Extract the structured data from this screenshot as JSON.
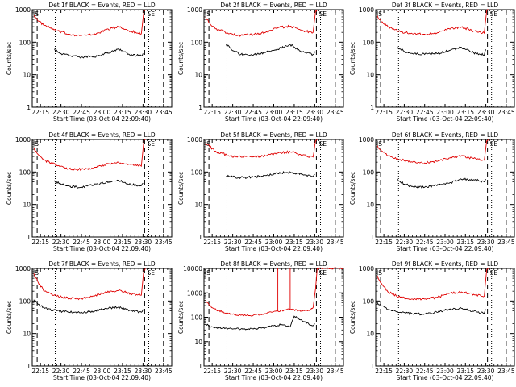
{
  "chart_data": [
    {
      "type": "line",
      "title": "Det 1f BLACK = Events, RED = LLD",
      "corner_left": "IS",
      "corner_right": "SE",
      "xlabel": "Start Time (03-Oct-04 22:09:40)",
      "ylabel": "Counts/sec",
      "ylim": [
        1,
        1000
      ],
      "ylog": true,
      "xlim": [
        22.15,
        23.85
      ],
      "xticks": [
        "22:15",
        "22:30",
        "22:45",
        "23:00",
        "23:15",
        "23:30",
        "23:45"
      ],
      "yticks": [
        "1",
        "10",
        "100",
        "1000"
      ],
      "markers": {
        "dashed": [
          22.21,
          23.52,
          23.75
        ],
        "dotted": [
          22.43,
          23.57
        ]
      },
      "series": [
        {
          "color": "#e00000",
          "x": [
            22.17,
            22.22,
            22.3,
            22.45,
            22.6,
            22.75,
            22.9,
            23.05,
            23.2,
            23.35,
            23.48,
            23.51,
            23.53
          ],
          "y": [
            700,
            450,
            330,
            220,
            175,
            160,
            170,
            240,
            300,
            220,
            180,
            900,
            1000
          ]
        },
        {
          "color": "#000000",
          "x": [
            22.42,
            22.5,
            22.6,
            22.75,
            22.9,
            23.05,
            23.2,
            23.35,
            23.48,
            23.5
          ],
          "y": [
            62,
            45,
            38,
            35,
            36,
            45,
            62,
            40,
            38,
            45
          ]
        }
      ]
    },
    {
      "type": "line",
      "title": "Det 2f BLACK = Events, RED = LLD",
      "corner_left": "IS",
      "corner_right": "SE",
      "xlabel": "Start Time (03-Oct-04 22:09:40)",
      "ylabel": "Counts/sec",
      "ylim": [
        1,
        1000
      ],
      "ylog": true,
      "xlim": [
        22.15,
        23.85
      ],
      "xticks": [
        "22:15",
        "22:30",
        "22:45",
        "23:00",
        "23:15",
        "23:30",
        "23:45"
      ],
      "yticks": [
        "1",
        "10",
        "100",
        "1000"
      ],
      "markers": {
        "dashed": [
          22.21,
          23.52,
          23.75
        ],
        "dotted": [
          22.43,
          23.57
        ]
      },
      "series": [
        {
          "color": "#e00000",
          "x": [
            22.17,
            22.22,
            22.3,
            22.45,
            22.6,
            22.75,
            22.9,
            23.05,
            23.2,
            23.35,
            23.48,
            23.51,
            23.53
          ],
          "y": [
            600,
            380,
            260,
            180,
            160,
            170,
            200,
            280,
            310,
            230,
            200,
            900,
            1000
          ]
        },
        {
          "color": "#000000",
          "x": [
            22.42,
            22.5,
            22.6,
            22.75,
            22.9,
            23.05,
            23.2,
            23.35,
            23.48,
            23.5
          ],
          "y": [
            85,
            55,
            42,
            40,
            48,
            60,
            85,
            50,
            42,
            52
          ]
        }
      ]
    },
    {
      "type": "line",
      "title": "Det 3f BLACK = Events, RED = LLD",
      "corner_left": "IS",
      "corner_right": "SE",
      "xlabel": "Start Time (03-Oct-04 22:09:40)",
      "ylabel": "Counts/sec",
      "ylim": [
        1,
        1000
      ],
      "ylog": true,
      "xlim": [
        22.15,
        23.85
      ],
      "xticks": [
        "22:15",
        "22:30",
        "22:45",
        "23:00",
        "23:15",
        "23:30",
        "23:45"
      ],
      "yticks": [
        "1",
        "10",
        "100",
        "1000"
      ],
      "markers": {
        "dashed": [
          22.21,
          23.52,
          23.75
        ],
        "dotted": [
          22.43,
          23.57
        ]
      },
      "series": [
        {
          "color": "#e00000",
          "x": [
            22.17,
            22.22,
            22.3,
            22.45,
            22.6,
            22.75,
            22.9,
            23.05,
            23.2,
            23.35,
            23.48,
            23.51,
            23.53
          ],
          "y": [
            650,
            420,
            300,
            210,
            180,
            175,
            190,
            260,
            290,
            220,
            190,
            900,
            1000
          ]
        },
        {
          "color": "#000000",
          "x": [
            22.42,
            22.5,
            22.6,
            22.75,
            22.9,
            23.05,
            23.2,
            23.35,
            23.48,
            23.5
          ],
          "y": [
            70,
            52,
            45,
            42,
            45,
            55,
            70,
            48,
            40,
            60
          ]
        }
      ]
    },
    {
      "type": "line",
      "title": "Det 4f BLACK = Events, RED = LLD",
      "corner_left": "IS",
      "corner_right": "SE",
      "xlabel": "Start Time (03-Oct-04 22:09:40)",
      "ylabel": "Counts/sec",
      "ylim": [
        1,
        1000
      ],
      "ylog": true,
      "xlim": [
        22.15,
        23.85
      ],
      "xticks": [
        "22:15",
        "22:30",
        "22:45",
        "23:00",
        "23:15",
        "23:30",
        "23:45"
      ],
      "yticks": [
        "1",
        "10",
        "100",
        "1000"
      ],
      "markers": {
        "dashed": [
          22.21,
          23.52,
          23.75
        ],
        "dotted": [
          22.43,
          23.57
        ]
      },
      "series": [
        {
          "color": "#e00000",
          "x": [
            22.17,
            22.22,
            22.3,
            22.45,
            22.6,
            22.75,
            22.9,
            23.05,
            23.2,
            23.35,
            23.48,
            23.51,
            23.53
          ],
          "y": [
            550,
            350,
            230,
            160,
            125,
            120,
            135,
            170,
            200,
            170,
            150,
            900,
            1000
          ]
        },
        {
          "color": "#000000",
          "x": [
            22.42,
            22.5,
            22.6,
            22.75,
            22.9,
            23.05,
            23.2,
            23.35,
            23.48,
            23.5
          ],
          "y": [
            55,
            42,
            36,
            34,
            40,
            48,
            55,
            42,
            38,
            45
          ]
        }
      ]
    },
    {
      "type": "line",
      "title": "Det 5f BLACK = Events, RED = LLD",
      "corner_left": "IS",
      "corner_right": "SE",
      "xlabel": "Start Time (03-Oct-04 22:09:40)",
      "ylabel": "Counts/sec",
      "ylim": [
        1,
        1000
      ],
      "ylog": true,
      "xlim": [
        22.15,
        23.85
      ],
      "xticks": [
        "22:15",
        "22:30",
        "22:45",
        "23:00",
        "23:15",
        "23:30",
        "23:45"
      ],
      "yticks": [
        "1",
        "10",
        "100",
        "1000"
      ],
      "markers": {
        "dashed": [
          22.21,
          23.52,
          23.75
        ],
        "dotted": [
          22.43,
          23.57
        ]
      },
      "series": [
        {
          "color": "#e00000",
          "x": [
            22.17,
            22.22,
            22.3,
            22.45,
            22.6,
            22.75,
            22.9,
            23.05,
            23.2,
            23.35,
            23.48,
            23.51,
            23.53
          ],
          "y": [
            800,
            600,
            420,
            320,
            290,
            290,
            310,
            380,
            420,
            330,
            290,
            900,
            1000
          ]
        },
        {
          "color": "#000000",
          "x": [
            22.42,
            22.5,
            22.6,
            22.75,
            22.9,
            23.05,
            23.2,
            23.35,
            23.48,
            23.5
          ],
          "y": [
            75,
            70,
            68,
            70,
            78,
            90,
            100,
            85,
            72,
            85
          ]
        }
      ]
    },
    {
      "type": "line",
      "title": "Det 6f BLACK = Events, RED = LLD",
      "corner_left": "IS",
      "corner_right": "SE",
      "xlabel": "Start Time (03-Oct-04 22:09:40)",
      "ylabel": "Counts/sec",
      "ylim": [
        1,
        1000
      ],
      "ylog": true,
      "xlim": [
        22.15,
        23.85
      ],
      "xticks": [
        "22:15",
        "22:30",
        "22:45",
        "23:00",
        "23:15",
        "23:30",
        "23:45"
      ],
      "yticks": [
        "1",
        "10",
        "100",
        "1000"
      ],
      "markers": {
        "dashed": [
          22.21,
          23.52,
          23.75
        ],
        "dotted": [
          22.43,
          23.57
        ]
      },
      "series": [
        {
          "color": "#e00000",
          "x": [
            22.17,
            22.22,
            22.3,
            22.45,
            22.6,
            22.75,
            22.9,
            23.05,
            23.2,
            23.35,
            23.48,
            23.51,
            23.53
          ],
          "y": [
            650,
            450,
            320,
            240,
            200,
            190,
            210,
            270,
            320,
            260,
            230,
            900,
            1000
          ]
        },
        {
          "color": "#000000",
          "x": [
            22.42,
            22.5,
            22.6,
            22.75,
            22.9,
            23.05,
            23.2,
            23.35,
            23.48,
            23.5
          ],
          "y": [
            60,
            42,
            36,
            34,
            38,
            45,
            60,
            58,
            50,
            60
          ]
        }
      ]
    },
    {
      "type": "line",
      "title": "Det 7f BLACK = Events, RED = LLD",
      "corner_left": "IS",
      "corner_right": "SE",
      "xlabel": "Start Time (03-Oct-04 22:09:40)",
      "ylabel": "Counts/sec",
      "ylim": [
        1,
        1000
      ],
      "ylog": true,
      "xlim": [
        22.15,
        23.85
      ],
      "xticks": [
        "22:15",
        "22:30",
        "22:45",
        "23:00",
        "23:15",
        "23:30",
        "23:45"
      ],
      "yticks": [
        "1",
        "10",
        "100",
        "1000"
      ],
      "markers": {
        "dashed": [
          22.21,
          23.52,
          23.75
        ],
        "dotted": [
          22.43,
          23.57
        ]
      },
      "series": [
        {
          "color": "#e00000",
          "x": [
            22.17,
            22.22,
            22.3,
            22.45,
            22.6,
            22.75,
            22.9,
            23.05,
            23.2,
            23.35,
            23.48,
            23.51,
            23.53
          ],
          "y": [
            700,
            380,
            200,
            140,
            120,
            120,
            140,
            190,
            210,
            170,
            150,
            900,
            1000
          ]
        },
        {
          "color": "#000000",
          "x": [
            22.17,
            22.22,
            22.3,
            22.45,
            22.6,
            22.75,
            22.9,
            23.05,
            23.2,
            23.35,
            23.48,
            23.5
          ],
          "y": [
            110,
            80,
            60,
            50,
            45,
            45,
            48,
            60,
            65,
            52,
            45,
            55
          ]
        }
      ]
    },
    {
      "type": "line",
      "title": "Det 8f BLACK = Events, RED = LLD",
      "corner_left": "IS",
      "corner_right": "SE",
      "xlabel": "Start Time (03-Oct-04 22:09:40)",
      "ylabel": "Counts/sec",
      "ylim": [
        1,
        10000
      ],
      "ylog": true,
      "xlim": [
        22.15,
        23.85
      ],
      "xticks": [
        "22:15",
        "22:30",
        "22:45",
        "23:00",
        "23:15",
        "23:30",
        "23:45"
      ],
      "yticks": [
        "1",
        "10",
        "100",
        "1000",
        "10000"
      ],
      "markers": {
        "dashed": [
          22.21,
          23.52,
          23.75
        ],
        "dotted": [
          22.43,
          23.57
        ]
      },
      "series": [
        {
          "color": "#e00000",
          "x": [
            22.17,
            22.22,
            22.3,
            22.45,
            22.6,
            22.75,
            22.9,
            23.0,
            23.05,
            23.05,
            23.05,
            23.15,
            23.2,
            23.2,
            23.2,
            23.35,
            23.45,
            23.48,
            23.51,
            23.53,
            23.85
          ],
          "y": [
            500,
            300,
            200,
            140,
            120,
            120,
            140,
            170,
            180,
            10000,
            180,
            200,
            210,
            10000,
            210,
            180,
            200,
            250,
            1500,
            10000,
            10000
          ]
        },
        {
          "color": "#000000",
          "x": [
            22.17,
            22.22,
            22.3,
            22.45,
            22.6,
            22.75,
            22.9,
            23.0,
            23.1,
            23.2,
            23.25,
            23.35,
            23.48,
            23.5
          ],
          "y": [
            55,
            42,
            38,
            35,
            33,
            33,
            38,
            45,
            50,
            40,
            110,
            70,
            45,
            55
          ]
        }
      ]
    },
    {
      "type": "line",
      "title": "Det 9f BLACK = Events, RED = LLD",
      "corner_left": "IS",
      "corner_right": "SE",
      "xlabel": "Start Time (03-Oct-04 22:09:40)",
      "ylabel": "Counts/sec",
      "ylim": [
        1,
        1000
      ],
      "ylog": true,
      "xlim": [
        22.15,
        23.85
      ],
      "xticks": [
        "22:15",
        "22:30",
        "22:45",
        "23:00",
        "23:15",
        "23:30",
        "23:45"
      ],
      "yticks": [
        "1",
        "10",
        "100",
        "1000"
      ],
      "markers": {
        "dashed": [
          22.21,
          23.52,
          23.75
        ],
        "dotted": [
          22.43,
          23.57
        ]
      },
      "series": [
        {
          "color": "#e00000",
          "x": [
            22.17,
            22.22,
            22.3,
            22.45,
            22.6,
            22.75,
            22.9,
            23.05,
            23.2,
            23.35,
            23.48,
            23.51,
            23.53
          ],
          "y": [
            600,
            350,
            190,
            130,
            115,
            115,
            130,
            170,
            190,
            160,
            140,
            900,
            1000
          ]
        },
        {
          "color": "#000000",
          "x": [
            22.17,
            22.22,
            22.3,
            22.45,
            22.6,
            22.75,
            22.9,
            23.05,
            23.2,
            23.35,
            23.48,
            23.5
          ],
          "y": [
            90,
            70,
            55,
            45,
            40,
            40,
            45,
            55,
            60,
            48,
            42,
            55
          ]
        }
      ]
    }
  ]
}
